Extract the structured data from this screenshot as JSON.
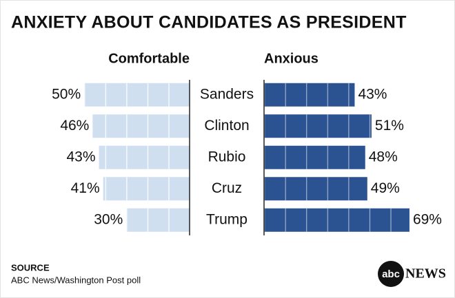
{
  "chart_data": {
    "type": "diverging-bar",
    "title": "ANXIETY ABOUT CANDIDATES AS PRESIDENT",
    "categories": [
      "Sanders",
      "Clinton",
      "Rubio",
      "Cruz",
      "Trump"
    ],
    "series": [
      {
        "name": "Comfortable",
        "color": "#cfdff0",
        "values": [
          50,
          46,
          43,
          41,
          30
        ],
        "value_labels": [
          "50%",
          "46%",
          "43%",
          "41%",
          "30%"
        ]
      },
      {
        "name": "Anxious",
        "color": "#2c5391",
        "values": [
          43,
          51,
          48,
          49,
          69
        ],
        "value_labels": [
          "43%",
          "51%",
          "48%",
          "49%",
          "69%"
        ]
      }
    ],
    "xlim": [
      0,
      70
    ],
    "source_label": "SOURCE",
    "source": "ABC News/Washington Post poll",
    "logo_mark": "abc",
    "logo_word": "NEWS"
  }
}
